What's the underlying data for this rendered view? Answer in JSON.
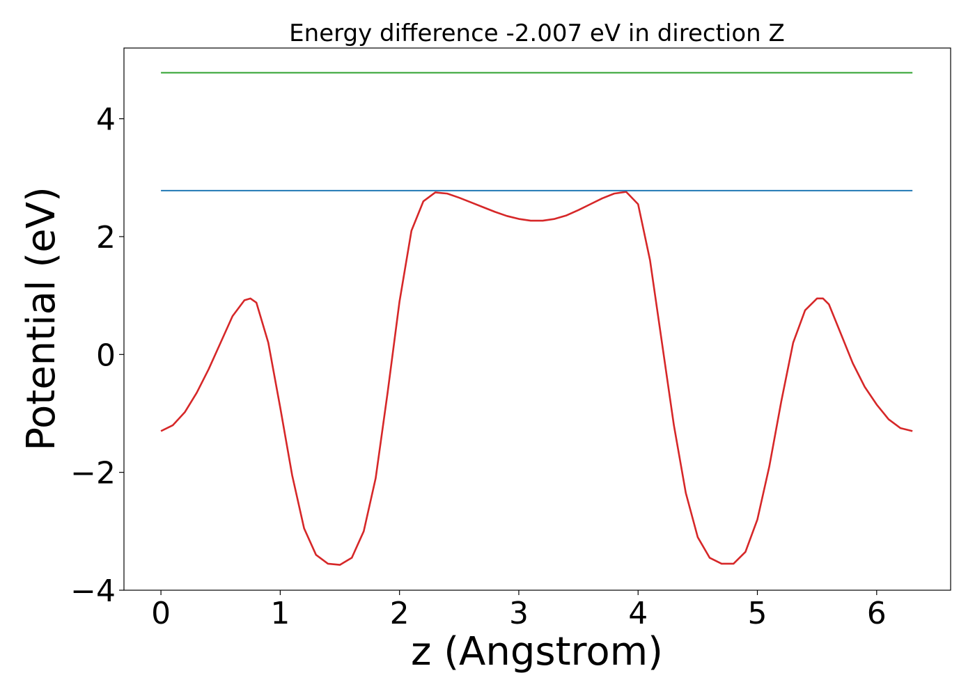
{
  "chart_data": {
    "type": "line",
    "title": "Energy difference -2.007 eV in direction Z",
    "xlabel": "z (Angstrom)",
    "ylabel": "Potential (eV)",
    "xlim": [
      -0.31,
      6.62
    ],
    "ylim": [
      -4.0,
      5.2
    ],
    "x_ticks": [
      0,
      1,
      2,
      3,
      4,
      5,
      6
    ],
    "x_tick_labels": [
      "0",
      "1",
      "2",
      "3",
      "4",
      "5",
      "6"
    ],
    "y_ticks": [
      -4,
      -2,
      0,
      2,
      4
    ],
    "y_tick_labels": [
      "−4",
      "−2",
      "0",
      "2",
      "4"
    ],
    "grid": false,
    "series": [
      {
        "color": "#d62728",
        "x": [
          0.0,
          0.1,
          0.2,
          0.3,
          0.4,
          0.5,
          0.6,
          0.7,
          0.75,
          0.8,
          0.9,
          1.0,
          1.1,
          1.2,
          1.3,
          1.4,
          1.5,
          1.6,
          1.7,
          1.8,
          1.9,
          2.0,
          2.1,
          2.2,
          2.3,
          2.4,
          2.5,
          2.6,
          2.7,
          2.8,
          2.9,
          3.0,
          3.1,
          3.2,
          3.3,
          3.4,
          3.5,
          3.6,
          3.7,
          3.8,
          3.9,
          4.0,
          4.1,
          4.2,
          4.3,
          4.4,
          4.5,
          4.6,
          4.7,
          4.8,
          4.9,
          5.0,
          5.1,
          5.2,
          5.3,
          5.4,
          5.5,
          5.55,
          5.6,
          5.7,
          5.8,
          5.9,
          6.0,
          6.1,
          6.2,
          6.3
        ],
        "y": [
          -1.3,
          -1.2,
          -0.98,
          -0.65,
          -0.25,
          0.2,
          0.65,
          0.92,
          0.95,
          0.88,
          0.2,
          -0.9,
          -2.05,
          -2.95,
          -3.4,
          -3.55,
          -3.57,
          -3.45,
          -3.0,
          -2.1,
          -0.65,
          0.9,
          2.1,
          2.6,
          2.75,
          2.73,
          2.66,
          2.58,
          2.5,
          2.42,
          2.35,
          2.3,
          2.27,
          2.27,
          2.3,
          2.36,
          2.45,
          2.55,
          2.65,
          2.73,
          2.76,
          2.55,
          1.6,
          0.2,
          -1.2,
          -2.35,
          -3.1,
          -3.45,
          -3.55,
          -3.55,
          -3.35,
          -2.8,
          -1.9,
          -0.8,
          0.2,
          0.75,
          0.95,
          0.95,
          0.85,
          0.35,
          -0.15,
          -0.55,
          -0.85,
          -1.1,
          -1.25,
          -1.3
        ]
      },
      {
        "color": "#1f77b4",
        "x": [
          0.0,
          6.3
        ],
        "y": [
          2.78,
          2.78
        ]
      },
      {
        "color": "#2ca02c",
        "x": [
          0.0,
          6.3
        ],
        "y": [
          4.78,
          4.78
        ]
      }
    ]
  }
}
